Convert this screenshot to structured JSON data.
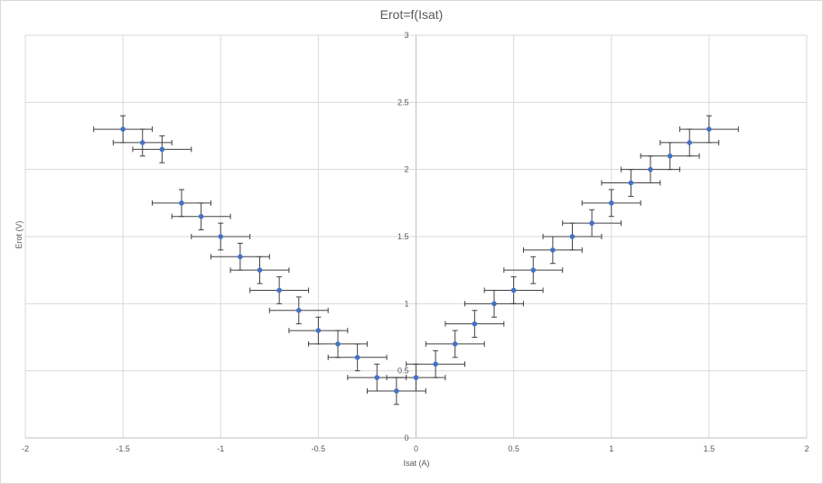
{
  "chart_data": {
    "type": "scatter",
    "title": "Erot=f(Isat)",
    "xlabel": "Isat (A)",
    "ylabel": "Erot (V)",
    "xlim": [
      -2,
      2
    ],
    "ylim": [
      0,
      3
    ],
    "x_ticks": [
      "-2",
      "-1.5",
      "-1",
      "-0.5",
      "0",
      "0.5",
      "1",
      "1.5",
      "2"
    ],
    "y_ticks": [
      "0",
      "0.5",
      "1",
      "1.5",
      "2",
      "2.5",
      "3"
    ],
    "x_tick_values": [
      -2,
      -1.5,
      -1,
      -0.5,
      0,
      0.5,
      1,
      1.5,
      2
    ],
    "y_tick_values": [
      0,
      0.5,
      1,
      1.5,
      2,
      2.5,
      3
    ],
    "grid": true,
    "marker_color": "#4472c4",
    "errorbar_color": "#404040",
    "x_error": 0.15,
    "y_error": 0.1,
    "points": [
      {
        "x": -1.5,
        "y": 2.3
      },
      {
        "x": -1.4,
        "y": 2.2
      },
      {
        "x": -1.3,
        "y": 2.15
      },
      {
        "x": -1.2,
        "y": 1.75
      },
      {
        "x": -1.1,
        "y": 1.65
      },
      {
        "x": -1.0,
        "y": 1.5
      },
      {
        "x": -0.9,
        "y": 1.35
      },
      {
        "x": -0.8,
        "y": 1.25
      },
      {
        "x": -0.7,
        "y": 1.1
      },
      {
        "x": -0.6,
        "y": 0.95
      },
      {
        "x": -0.5,
        "y": 0.8
      },
      {
        "x": -0.4,
        "y": 0.7
      },
      {
        "x": -0.3,
        "y": 0.6
      },
      {
        "x": -0.2,
        "y": 0.45
      },
      {
        "x": -0.1,
        "y": 0.35
      },
      {
        "x": 0.0,
        "y": 0.45
      },
      {
        "x": 0.1,
        "y": 0.55
      },
      {
        "x": 0.2,
        "y": 0.7
      },
      {
        "x": 0.3,
        "y": 0.85
      },
      {
        "x": 0.4,
        "y": 1.0
      },
      {
        "x": 0.5,
        "y": 1.1
      },
      {
        "x": 0.6,
        "y": 1.25
      },
      {
        "x": 0.7,
        "y": 1.4
      },
      {
        "x": 0.8,
        "y": 1.5
      },
      {
        "x": 0.9,
        "y": 1.6
      },
      {
        "x": 1.0,
        "y": 1.75
      },
      {
        "x": 1.1,
        "y": 1.9
      },
      {
        "x": 1.2,
        "y": 2.0
      },
      {
        "x": 1.3,
        "y": 2.1
      },
      {
        "x": 1.4,
        "y": 2.2
      },
      {
        "x": 1.5,
        "y": 2.3
      }
    ]
  }
}
